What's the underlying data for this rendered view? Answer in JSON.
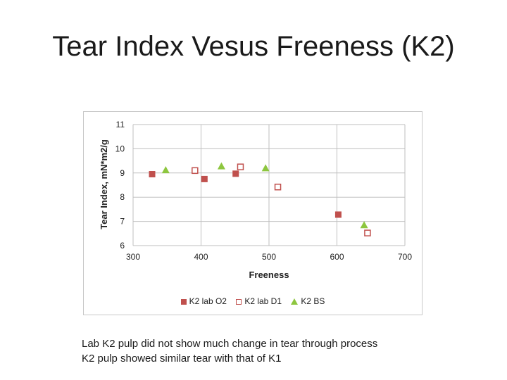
{
  "slide": {
    "title": "Tear Index Vesus Freeness (K2)",
    "notes": [
      "Lab K2 pulp did not show much change in tear through process",
      "K2 pulp showed similar tear with that of K1"
    ]
  },
  "chart_data": {
    "type": "scatter",
    "title": "",
    "xlabel": "Freeness",
    "ylabel": "Tear Index, mN*m2/g",
    "xlim": [
      300,
      700
    ],
    "ylim": [
      6,
      11
    ],
    "xticks": [
      "300",
      "400",
      "500",
      "600",
      "700"
    ],
    "yticks": [
      "6",
      "7",
      "8",
      "9",
      "10",
      "11"
    ],
    "grid": true,
    "legend_position": "bottom",
    "series": [
      {
        "name": "K2 lab O2",
        "marker": "filled-square",
        "color": "#c0504d",
        "points": [
          [
            328,
            8.95
          ],
          [
            405,
            8.75
          ],
          [
            451,
            8.97
          ],
          [
            602,
            7.28
          ]
        ]
      },
      {
        "name": "K2 lab D1",
        "marker": "open-square",
        "color": "#c0504d",
        "points": [
          [
            391,
            9.1
          ],
          [
            458,
            9.25
          ],
          [
            513,
            8.42
          ],
          [
            645,
            6.52
          ]
        ]
      },
      {
        "name": "K2 BS",
        "marker": "triangle",
        "color": "#8dc63f",
        "points": [
          [
            348,
            9.12
          ],
          [
            430,
            9.28
          ],
          [
            495,
            9.2
          ],
          [
            640,
            6.85
          ]
        ]
      }
    ]
  }
}
